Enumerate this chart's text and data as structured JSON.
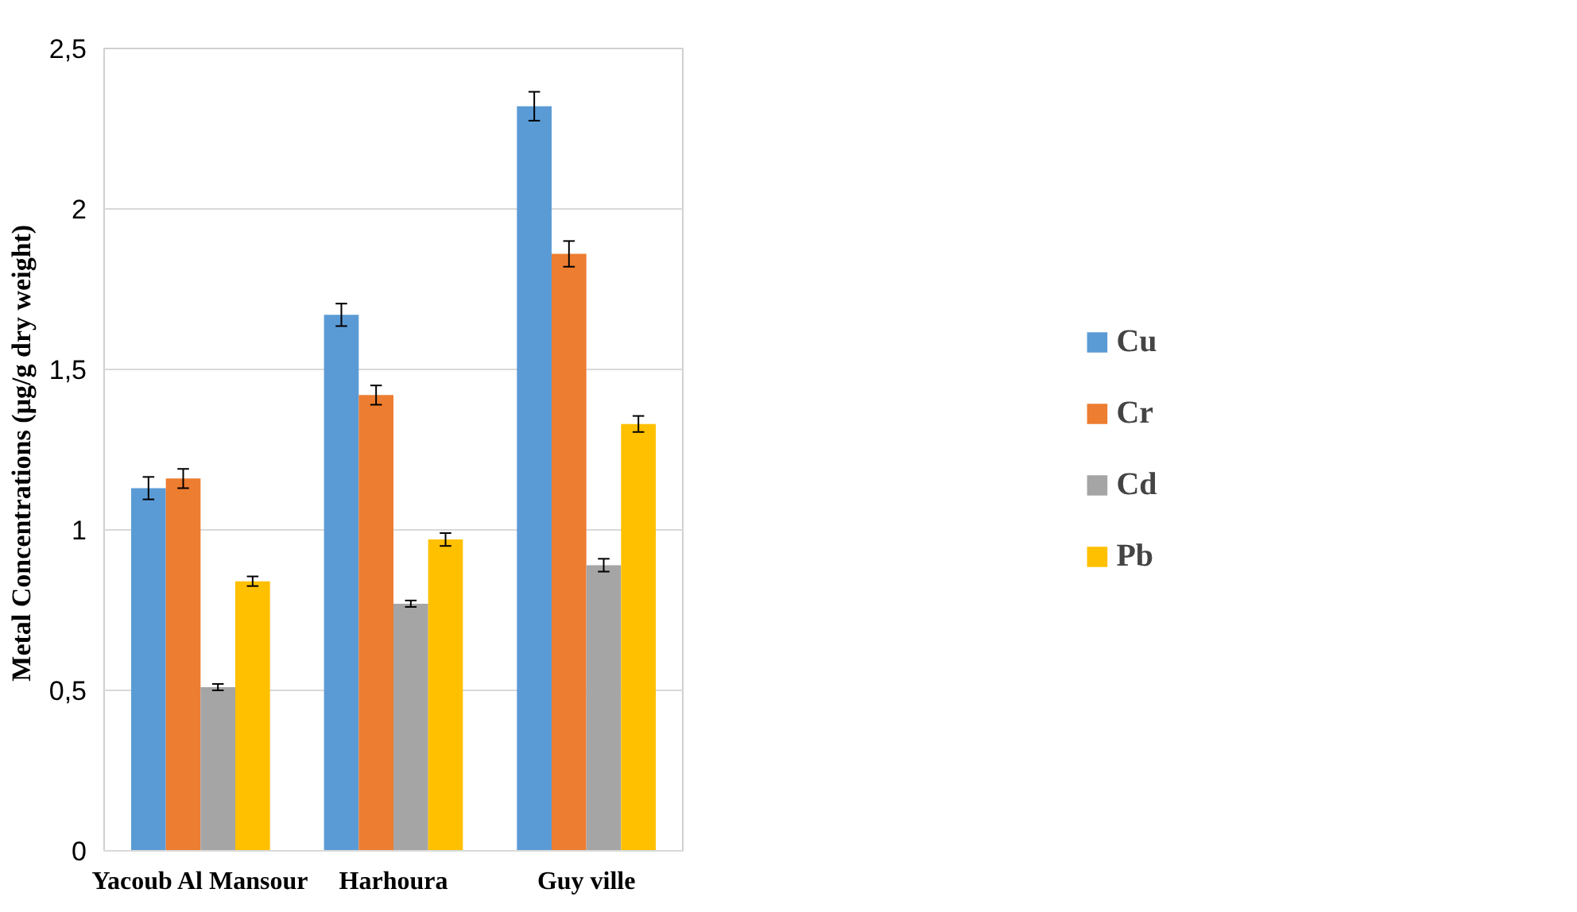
{
  "chart_data": {
    "type": "bar",
    "ylabel": "Metal  Concentrations (µg/g dry weight)",
    "categories": [
      "Yacoub Al Mansour",
      "Harhoura",
      "Guy ville"
    ],
    "series": [
      {
        "name": "Cu",
        "color": "#5b9bd5",
        "values": [
          1.13,
          1.67,
          2.32
        ],
        "errors": [
          0.035,
          0.035,
          0.045
        ]
      },
      {
        "name": "Cr",
        "color": "#ed7d31",
        "values": [
          1.16,
          1.42,
          1.86
        ],
        "errors": [
          0.03,
          0.03,
          0.04
        ]
      },
      {
        "name": "Cd",
        "color": "#a5a5a5",
        "values": [
          0.51,
          0.77,
          0.89
        ],
        "errors": [
          0.01,
          0.01,
          0.02
        ]
      },
      {
        "name": "Pb",
        "color": "#ffc000",
        "values": [
          0.84,
          0.97,
          1.33
        ],
        "errors": [
          0.015,
          0.02,
          0.025
        ]
      }
    ],
    "ylim": [
      0,
      2.5
    ],
    "yticks": [
      0,
      {
        "value": 0.5,
        "label": "0,5"
      },
      1,
      {
        "value": 1.5,
        "label": "1,5"
      },
      2,
      {
        "value": 2.5,
        "label": "2,5"
      }
    ],
    "grid": "y",
    "legend": "right"
  }
}
